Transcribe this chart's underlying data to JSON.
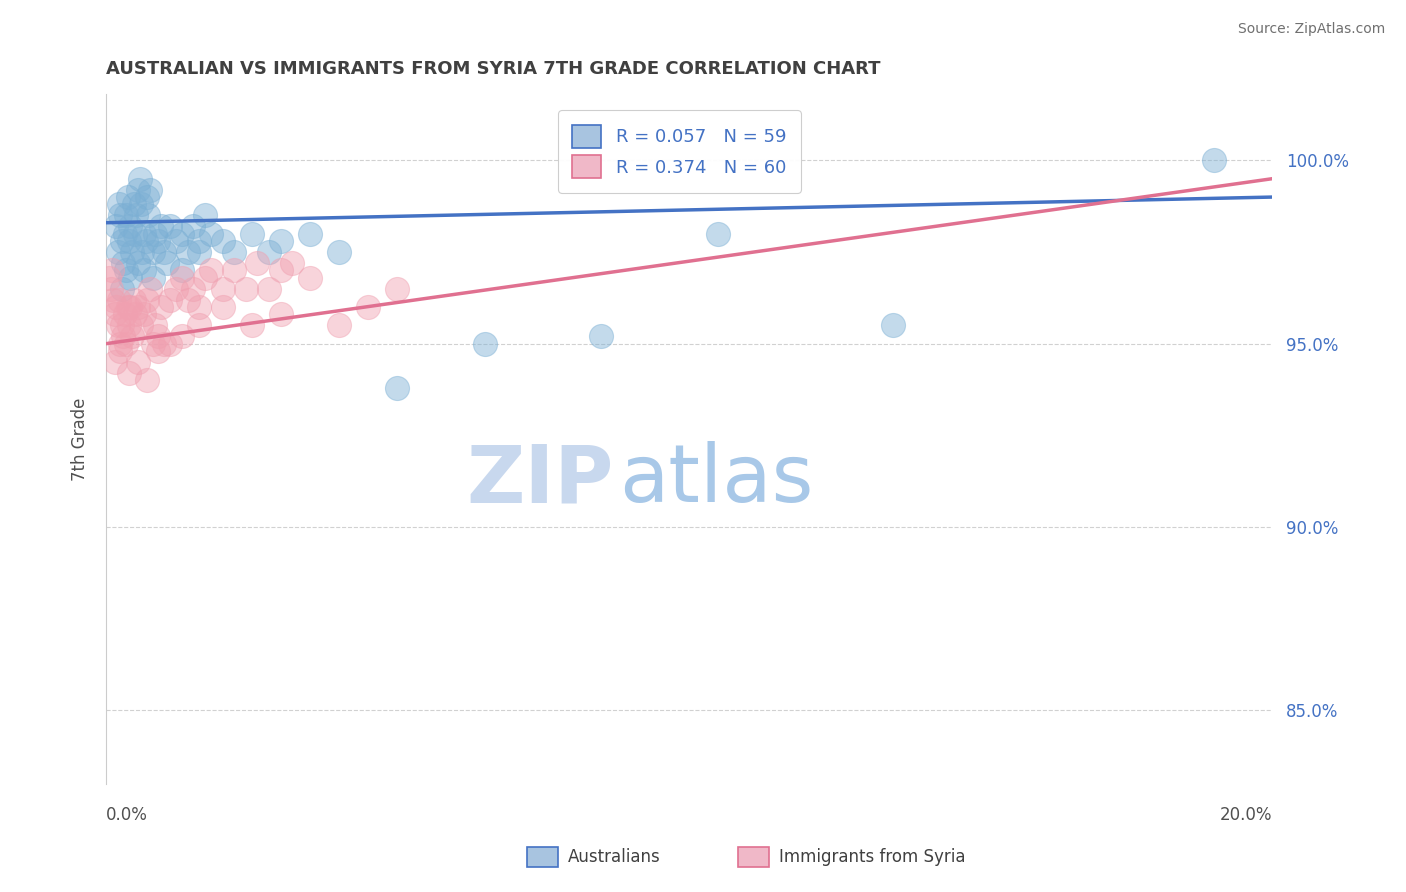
{
  "title": "AUSTRALIAN VS IMMIGRANTS FROM SYRIA 7TH GRADE CORRELATION CHART",
  "source_text": "Source: ZipAtlas.com",
  "ylabel": "7th Grade",
  "xmin": 0.0,
  "xmax": 20.0,
  "ymin": 83.0,
  "ymax": 101.8,
  "yticks": [
    85.0,
    90.0,
    95.0,
    100.0
  ],
  "ytick_labels": [
    "85.0%",
    "90.0%",
    "95.0%",
    "100.0%"
  ],
  "legend_r_blue": "R = 0.057",
  "legend_n_blue": "N = 59",
  "legend_r_pink": "R = 0.374",
  "legend_n_pink": "N = 60",
  "blue_color": "#7bafd4",
  "blue_line_color": "#4472c4",
  "pink_color": "#f0a0b0",
  "pink_line_color": "#e07090",
  "legend_blue_face": "#a8c4e0",
  "legend_pink_face": "#f0b8c8",
  "watermark_zip": "ZIP",
  "watermark_atlas": "atlas",
  "watermark_color_zip": "#c8d8ee",
  "watermark_color_atlas": "#a8c8e8",
  "background_color": "#ffffff",
  "grid_color": "#cccccc",
  "title_color": "#404040",
  "axis_label_color": "#505050",
  "source_color": "#707070",
  "tick_color": "#4472c4",
  "blue_x": [
    0.18,
    0.2,
    0.22,
    0.25,
    0.28,
    0.3,
    0.32,
    0.35,
    0.38,
    0.4,
    0.42,
    0.45,
    0.48,
    0.5,
    0.52,
    0.55,
    0.58,
    0.6,
    0.62,
    0.65,
    0.68,
    0.7,
    0.72,
    0.75,
    0.8,
    0.85,
    0.9,
    0.95,
    1.0,
    1.1,
    1.2,
    1.3,
    1.4,
    1.5,
    1.6,
    1.7,
    1.8,
    2.0,
    2.2,
    2.5,
    2.8,
    3.0,
    3.5,
    4.0,
    5.0,
    6.5,
    8.5,
    10.5,
    13.5,
    19.0,
    0.28,
    0.35,
    0.42,
    0.55,
    0.65,
    0.8,
    1.05,
    1.3,
    1.6
  ],
  "blue_y": [
    98.2,
    97.5,
    98.8,
    98.5,
    97.8,
    97.2,
    98.0,
    98.5,
    99.0,
    97.8,
    98.2,
    97.5,
    98.8,
    98.0,
    98.5,
    99.2,
    99.5,
    98.8,
    97.5,
    98.0,
    97.8,
    99.0,
    98.5,
    99.2,
    97.5,
    98.0,
    97.8,
    98.2,
    97.5,
    98.2,
    97.8,
    98.0,
    97.5,
    98.2,
    97.8,
    98.5,
    98.0,
    97.8,
    97.5,
    98.0,
    97.5,
    97.8,
    98.0,
    97.5,
    93.8,
    95.0,
    95.2,
    98.0,
    95.5,
    100.0,
    96.5,
    97.0,
    96.8,
    97.2,
    97.0,
    96.8,
    97.2,
    97.0,
    97.5
  ],
  "pink_x": [
    0.05,
    0.08,
    0.1,
    0.12,
    0.15,
    0.17,
    0.2,
    0.22,
    0.25,
    0.28,
    0.3,
    0.32,
    0.35,
    0.38,
    0.4,
    0.42,
    0.45,
    0.48,
    0.5,
    0.55,
    0.6,
    0.65,
    0.7,
    0.75,
    0.8,
    0.85,
    0.9,
    0.95,
    1.0,
    1.1,
    1.2,
    1.3,
    1.4,
    1.5,
    1.6,
    1.7,
    1.8,
    2.0,
    2.2,
    2.4,
    2.6,
    2.8,
    3.0,
    3.2,
    3.5,
    4.0,
    4.5,
    5.0,
    0.15,
    0.25,
    0.4,
    0.55,
    0.7,
    0.9,
    1.1,
    1.3,
    1.6,
    2.0,
    2.5,
    3.0
  ],
  "pink_y": [
    96.8,
    96.5,
    97.0,
    96.2,
    95.8,
    96.0,
    95.5,
    96.2,
    95.0,
    95.5,
    95.2,
    95.8,
    95.0,
    96.0,
    95.5,
    96.0,
    95.2,
    96.2,
    95.8,
    96.0,
    95.5,
    95.8,
    96.2,
    96.5,
    95.0,
    95.5,
    95.2,
    96.0,
    95.0,
    96.2,
    96.5,
    96.8,
    96.2,
    96.5,
    96.0,
    96.8,
    97.0,
    96.5,
    97.0,
    96.5,
    97.2,
    96.5,
    97.0,
    97.2,
    96.8,
    95.5,
    96.0,
    96.5,
    94.5,
    94.8,
    94.2,
    94.5,
    94.0,
    94.8,
    95.0,
    95.2,
    95.5,
    96.0,
    95.5,
    95.8
  ]
}
